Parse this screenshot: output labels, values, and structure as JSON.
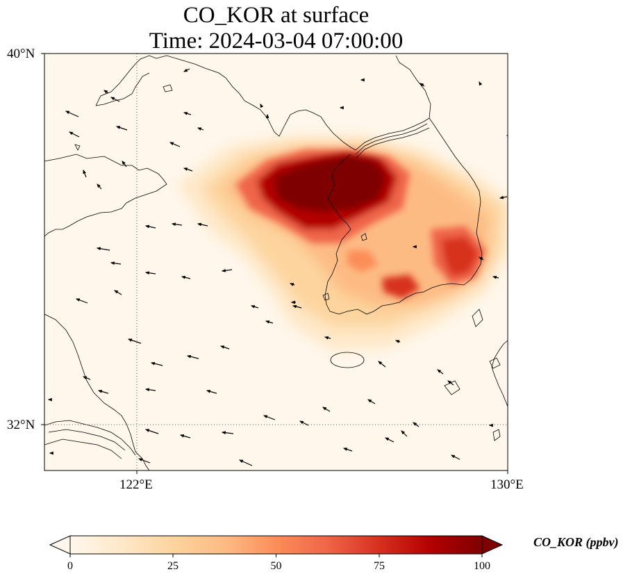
{
  "title_line1": "CO_KOR at surface",
  "title_line2": "Time: 2024-03-04 07:00:00",
  "map": {
    "lat_range": [
      31,
      40
    ],
    "lon_range": [
      120,
      130
    ],
    "lat_tick_labels": [
      "40°N",
      "32°N"
    ],
    "lon_tick_labels": [
      "122°E",
      "130°E"
    ],
    "gridlines": {
      "lon": [
        122
      ],
      "lat": [
        32
      ],
      "style": "dotted"
    },
    "field_name": "CO_KOR",
    "wind_vectors_shown": true
  },
  "colorbar": {
    "label": "CO_KOR (ppbv)",
    "colormap": "OrRd",
    "range": [
      0,
      100
    ],
    "extend": "both",
    "tick_labels": [
      "0",
      "25",
      "50",
      "75",
      "100"
    ],
    "colors": [
      "#fff7ec",
      "#fee8c8",
      "#fdd49e",
      "#fdbb84",
      "#fc8d59",
      "#ef6548",
      "#d7301f",
      "#b30000",
      "#7f0000"
    ]
  }
}
